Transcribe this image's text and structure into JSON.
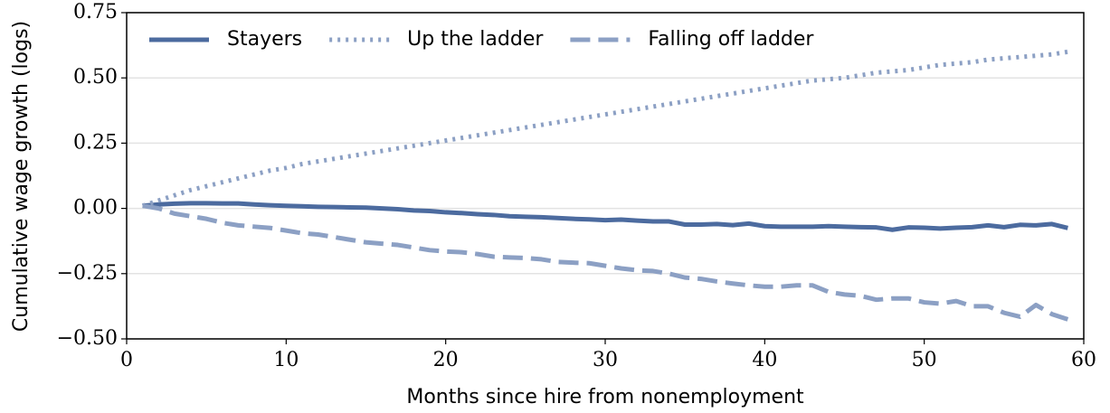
{
  "chart_data": {
    "type": "line",
    "xlabel": "Months since hire from nonemployment",
    "ylabel": "Cumulative wage growth (logs)",
    "x": [
      1,
      2,
      3,
      4,
      5,
      6,
      7,
      8,
      9,
      10,
      11,
      12,
      13,
      14,
      15,
      16,
      17,
      18,
      19,
      20,
      21,
      22,
      23,
      24,
      25,
      26,
      27,
      28,
      29,
      30,
      31,
      32,
      33,
      34,
      35,
      36,
      37,
      38,
      39,
      40,
      41,
      42,
      43,
      44,
      45,
      46,
      47,
      48,
      49,
      50,
      51,
      52,
      53,
      54,
      55,
      56,
      57,
      58,
      59
    ],
    "series": [
      {
        "name": "Stayers",
        "color": "#4c6b9f",
        "dash": "solid",
        "values": [
          0.01,
          0.015,
          0.018,
          0.02,
          0.02,
          0.019,
          0.019,
          0.015,
          0.012,
          0.01,
          0.008,
          0.006,
          0.005,
          0.004,
          0.003,
          0.0,
          -0.003,
          -0.008,
          -0.01,
          -0.015,
          -0.018,
          -0.022,
          -0.025,
          -0.03,
          -0.032,
          -0.034,
          -0.037,
          -0.04,
          -0.042,
          -0.045,
          -0.043,
          -0.047,
          -0.05,
          -0.05,
          -0.062,
          -0.062,
          -0.06,
          -0.064,
          -0.058,
          -0.068,
          -0.07,
          -0.07,
          -0.07,
          -0.068,
          -0.07,
          -0.072,
          -0.073,
          -0.082,
          -0.073,
          -0.074,
          -0.077,
          -0.074,
          -0.072,
          -0.065,
          -0.072,
          -0.063,
          -0.065,
          -0.06,
          -0.075
        ]
      },
      {
        "name": "Up the ladder",
        "color": "#8ca0c4",
        "dash": "dotted",
        "values": [
          0.01,
          0.03,
          0.05,
          0.07,
          0.085,
          0.1,
          0.115,
          0.13,
          0.145,
          0.155,
          0.17,
          0.18,
          0.19,
          0.2,
          0.21,
          0.22,
          0.23,
          0.24,
          0.25,
          0.26,
          0.27,
          0.28,
          0.29,
          0.3,
          0.31,
          0.32,
          0.33,
          0.34,
          0.35,
          0.36,
          0.37,
          0.38,
          0.39,
          0.4,
          0.41,
          0.42,
          0.43,
          0.44,
          0.45,
          0.46,
          0.47,
          0.48,
          0.49,
          0.495,
          0.5,
          0.51,
          0.52,
          0.525,
          0.53,
          0.54,
          0.55,
          0.555,
          0.56,
          0.57,
          0.575,
          0.58,
          0.585,
          0.59,
          0.6
        ]
      },
      {
        "name": "Falling off ladder",
        "color": "#8ca0c4",
        "dash": "dashed",
        "values": [
          0.01,
          0.0,
          -0.02,
          -0.03,
          -0.04,
          -0.055,
          -0.065,
          -0.07,
          -0.075,
          -0.085,
          -0.095,
          -0.1,
          -0.11,
          -0.12,
          -0.13,
          -0.135,
          -0.14,
          -0.15,
          -0.16,
          -0.165,
          -0.168,
          -0.175,
          -0.185,
          -0.188,
          -0.19,
          -0.195,
          -0.205,
          -0.208,
          -0.21,
          -0.22,
          -0.23,
          -0.237,
          -0.24,
          -0.25,
          -0.265,
          -0.27,
          -0.28,
          -0.288,
          -0.295,
          -0.3,
          -0.3,
          -0.295,
          -0.295,
          -0.32,
          -0.33,
          -0.335,
          -0.35,
          -0.345,
          -0.345,
          -0.36,
          -0.365,
          -0.355,
          -0.375,
          -0.375,
          -0.4,
          -0.415,
          -0.37,
          -0.405,
          -0.425
        ]
      }
    ],
    "xlim": [
      0,
      60
    ],
    "xticks": [
      0,
      10,
      20,
      30,
      40,
      50,
      60
    ],
    "ylim": [
      -0.5,
      0.75
    ],
    "yticks": [
      {
        "value": -0.5,
        "label": "−0.50"
      },
      {
        "value": -0.25,
        "label": "−0.25"
      },
      {
        "value": 0,
        "label": "0.00"
      },
      {
        "value": 0.25,
        "label": "0.25"
      },
      {
        "value": 0.5,
        "label": "0.50"
      },
      0.75
    ],
    "grid": true,
    "legend": "upper left"
  }
}
